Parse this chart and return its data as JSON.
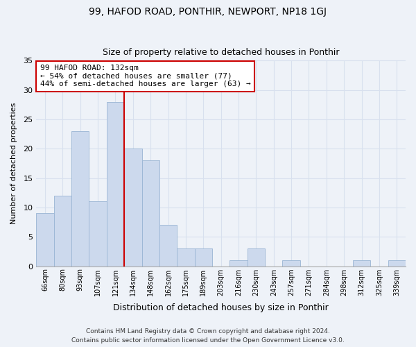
{
  "title": "99, HAFOD ROAD, PONTHIR, NEWPORT, NP18 1GJ",
  "subtitle": "Size of property relative to detached houses in Ponthir",
  "xlabel": "Distribution of detached houses by size in Ponthir",
  "ylabel": "Number of detached properties",
  "bar_color": "#ccd9ed",
  "bar_edgecolor": "#9ab5d4",
  "bins": [
    "66sqm",
    "80sqm",
    "93sqm",
    "107sqm",
    "121sqm",
    "134sqm",
    "148sqm",
    "162sqm",
    "175sqm",
    "189sqm",
    "203sqm",
    "216sqm",
    "230sqm",
    "243sqm",
    "257sqm",
    "271sqm",
    "284sqm",
    "298sqm",
    "312sqm",
    "325sqm",
    "339sqm"
  ],
  "values": [
    9,
    12,
    23,
    11,
    28,
    20,
    18,
    7,
    3,
    3,
    0,
    1,
    3,
    0,
    1,
    0,
    0,
    0,
    1,
    0,
    1
  ],
  "ylim": [
    0,
    35
  ],
  "yticks": [
    0,
    5,
    10,
    15,
    20,
    25,
    30,
    35
  ],
  "annotation_title": "99 HAFOD ROAD: 132sqm",
  "annotation_line1": "← 54% of detached houses are smaller (77)",
  "annotation_line2": "44% of semi-detached houses are larger (63) →",
  "annotation_box_color": "#ffffff",
  "annotation_box_edgecolor": "#cc0000",
  "red_line_color": "#cc0000",
  "footer1": "Contains HM Land Registry data © Crown copyright and database right 2024.",
  "footer2": "Contains public sector information licensed under the Open Government Licence v3.0.",
  "background_color": "#eef2f8",
  "grid_color": "#d8e0ee"
}
